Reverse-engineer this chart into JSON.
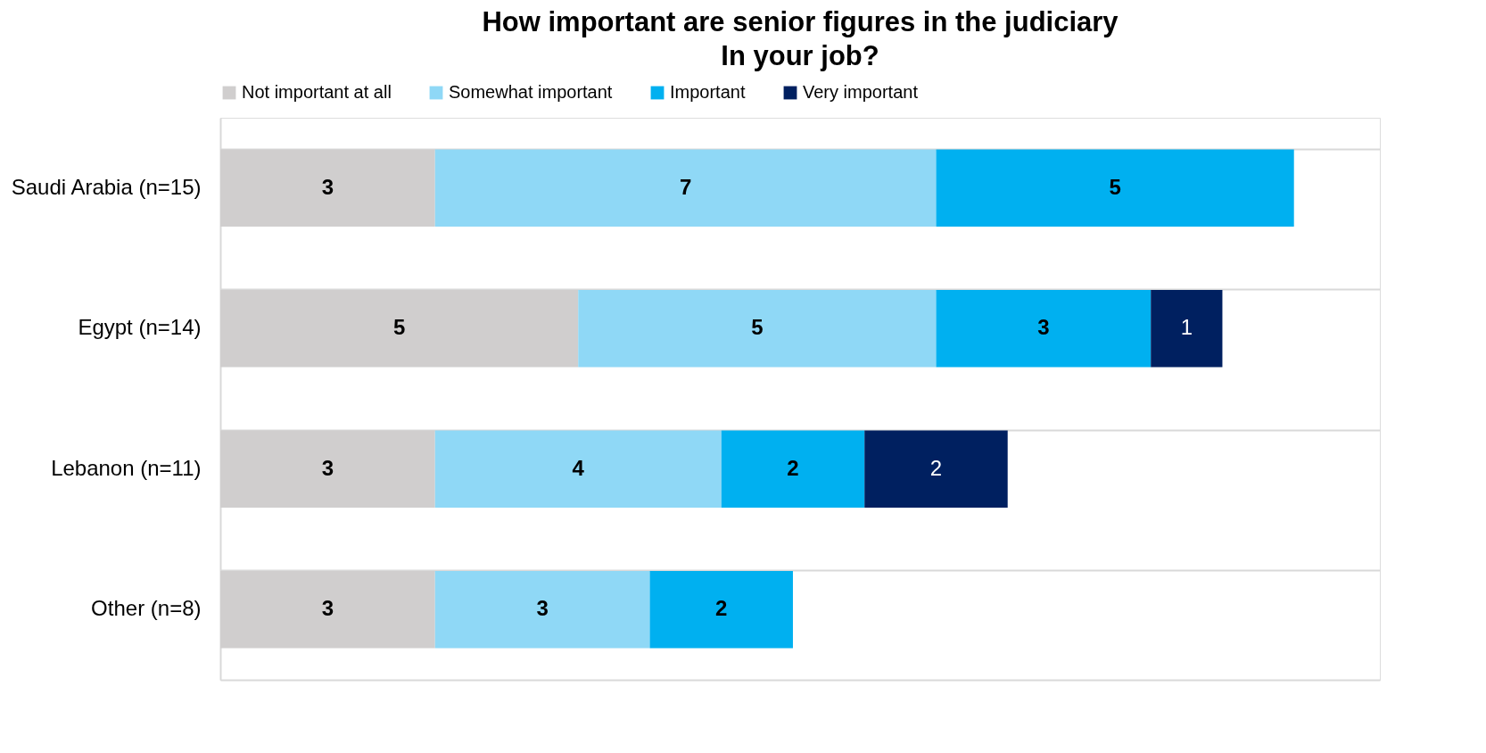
{
  "chart_data": {
    "type": "bar",
    "orientation": "horizontal",
    "stacked": true,
    "relative": false,
    "title": "How important are senior figures in the judiciary",
    "subtitle": "In your job?",
    "categories": [
      "Saudi Arabia (n=15)",
      "Egypt (n=14)",
      "Lebanon (n=11)",
      "Other (n=8)"
    ],
    "series": [
      {
        "name": "Not important at all",
        "color": "#d0cece",
        "values": [
          3,
          5,
          3,
          3
        ]
      },
      {
        "name": "Somewhat important",
        "color": "#8fd8f6",
        "values": [
          7,
          5,
          4,
          3
        ]
      },
      {
        "name": "Important",
        "color": "#00b0f0",
        "values": [
          5,
          3,
          2,
          2
        ]
      },
      {
        "name": "Very important",
        "color": "#002060",
        "values": [
          null,
          1,
          2,
          null
        ]
      }
    ],
    "xlim": [
      0,
      16.2
    ],
    "data_labels": true,
    "legend": "top",
    "grid": "y",
    "tick_labels": "y"
  }
}
